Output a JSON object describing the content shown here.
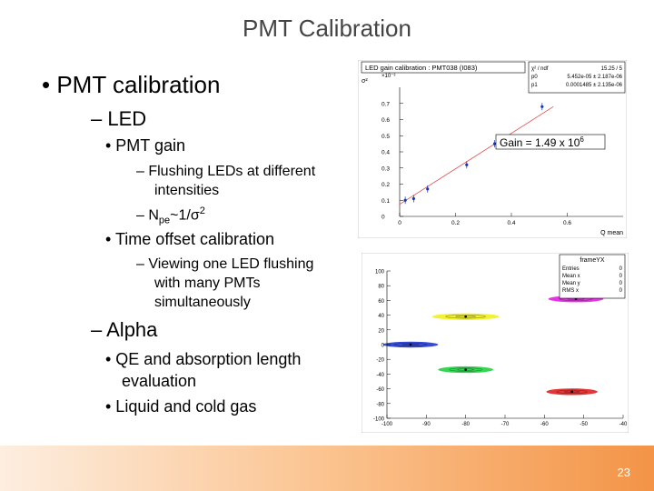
{
  "slide": {
    "title": "PMT Calibration",
    "page_number": "23"
  },
  "bullets": {
    "l1": "• PMT calibration",
    "led": "– LED",
    "pmt_gain": "• PMT gain",
    "flush_1": "– Flushing LEDs at different",
    "flush_2": "intensities",
    "npe_dash": "– N",
    "npe_sub": "pe",
    "npe_rest": "~1/σ",
    "npe_sup": "2",
    "time_offset": "• Time offset calibration",
    "view_1": "– Viewing one LED flushing",
    "view_2": "with many PMTs",
    "view_3": "simultaneously",
    "alpha": "– Alpha",
    "qe_1": "• QE and absorption length",
    "qe_2": "evaluation",
    "liquid": "• Liquid and cold gas"
  },
  "gain_plot": {
    "title": "LED gain calibration : PMT038 (I083)",
    "stats": [
      {
        "label": "χ² / ndf",
        "value": "15.25 / 5"
      },
      {
        "label": "p0",
        "value": "5.452e-05 ± 2.187e-06"
      },
      {
        "label": "p1",
        "value": "0.0001485 ± 2.135e-06"
      }
    ],
    "y_unit": "σ²",
    "y_exp": "×10⁻³",
    "x_label": "Q mean",
    "gain_label": "Gain = 1.49 x 10",
    "gain_exp": "6"
  },
  "scatter_plot": {
    "stats_title": "frameYX",
    "stats": [
      {
        "label": "Entries",
        "value": "0"
      },
      {
        "label": "Mean x",
        "value": "0"
      },
      {
        "label": "Mean y",
        "value": "0"
      },
      {
        "label": "RMS x",
        "value": "0"
      }
    ]
  },
  "chart_data": [
    {
      "type": "scatter",
      "title": "LED gain calibration : PMT038 (I083)",
      "xlabel": "Q mean",
      "ylabel": "σ²",
      "xlim": [
        0,
        0.8
      ],
      "ylim": [
        0,
        0.8
      ],
      "y_scale_note": "×10⁻³",
      "x_ticks": [
        "0",
        "0.2",
        "0.4",
        "0.6"
      ],
      "y_ticks": [
        "0",
        "0.1",
        "0.2",
        "0.3",
        "0.4",
        "0.5",
        "0.6",
        "0.7"
      ],
      "grid": false,
      "fit": {
        "p0": 0.0545,
        "p1": 0.148
      },
      "x": [
        0.02,
        0.05,
        0.1,
        0.24,
        0.34,
        0.51
      ],
      "y": [
        0.1,
        0.11,
        0.17,
        0.32,
        0.45,
        0.68
      ],
      "point_colors": [
        "#1a33b3",
        "#1a33b3",
        "#1a33b3",
        "#1a33b3",
        "#1a33b3",
        "#1a33b3"
      ],
      "line_color": "#e05050"
    },
    {
      "type": "scatter",
      "title": "frameYX",
      "xlim": [
        -100,
        -40
      ],
      "ylim": [
        -100,
        100
      ],
      "x_ticks": [
        "-100",
        "-90",
        "-80",
        "-70",
        "-60",
        "-50",
        "-40"
      ],
      "y_ticks": [
        "-100",
        "-80",
        "-60",
        "-40",
        "-20",
        "0",
        "20",
        "40",
        "60",
        "80",
        "100"
      ],
      "grid": false,
      "series": [
        {
          "color": "#e020e0",
          "cx": -52,
          "cy": 62,
          "rx": 7,
          "ry": 4.5
        },
        {
          "color": "#f0f020",
          "cx": -80,
          "cy": 38,
          "rx": 8.5,
          "ry": 4.5
        },
        {
          "color": "#2038d0",
          "cx": -94,
          "cy": 0,
          "rx": 7,
          "ry": 4
        },
        {
          "color": "#20d040",
          "cx": -80,
          "cy": -34,
          "rx": 7,
          "ry": 4.5
        },
        {
          "color": "#e02020",
          "cx": -53,
          "cy": -64,
          "rx": 6.5,
          "ry": 4.5
        }
      ]
    }
  ]
}
